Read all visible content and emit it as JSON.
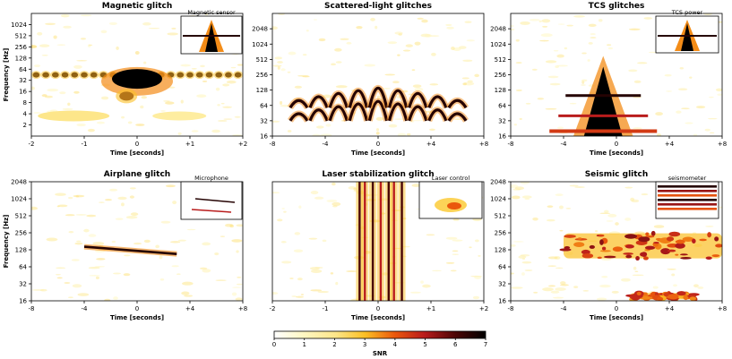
{
  "chart_data": [
    {
      "type": "heatmap",
      "title": "Magnetic glitch",
      "xlabel": "Time [seconds]",
      "ylabel": "Frequency [Hz]",
      "xlim": [
        -2,
        2
      ],
      "xticks": [
        "-2",
        "-1",
        "0",
        "+1",
        "+2"
      ],
      "ylim": [
        1,
        2048
      ],
      "yticks": [
        "2",
        "4",
        "8",
        "16",
        "32",
        "64",
        "128",
        "256",
        "512",
        "1024"
      ],
      "inset_label": "Magnetic sensor",
      "features": [
        {
          "kind": "comb",
          "freq": 45,
          "t_start": -2,
          "t_end": 2,
          "count": 22,
          "snr": 6.5
        },
        {
          "kind": "burst",
          "t": 0,
          "f_low": 8,
          "f_high": 60,
          "snr": 7
        },
        {
          "kind": "blob",
          "t": -1.2,
          "f": 3.5,
          "snr": 2
        }
      ]
    },
    {
      "type": "heatmap",
      "title": "Scattered-light glitches",
      "xlabel": "Time [seconds]",
      "ylabel": "",
      "xlim": [
        -8,
        8
      ],
      "xticks": [
        "-8",
        "-4",
        "0",
        "+4",
        "+8"
      ],
      "ylim": [
        16,
        4096
      ],
      "yticks": [
        "16",
        "32",
        "64",
        "128",
        "256",
        "512",
        "1024",
        "2048"
      ],
      "inset_label": "",
      "features": [
        {
          "kind": "arches",
          "centers": [
            -6,
            -4.5,
            -3,
            -1.5,
            0,
            1.5,
            3,
            4.5,
            6
          ],
          "f_base": 32,
          "peak": 140,
          "harmonics": 2,
          "snr": 6.5
        }
      ]
    },
    {
      "type": "heatmap",
      "title": "TCS glitches",
      "xlabel": "Time [seconds]",
      "ylabel": "",
      "xlim": [
        -8,
        8
      ],
      "xticks": [
        "-8",
        "-4",
        "0",
        "+4",
        "+8"
      ],
      "ylim": [
        16,
        4096
      ],
      "yticks": [
        "16",
        "32",
        "64",
        "128",
        "256",
        "512",
        "1024",
        "2048"
      ],
      "inset_label": "TCS power",
      "features": [
        {
          "kind": "tree",
          "t": -1,
          "f_top": 600,
          "f_bottom": 16,
          "snr": 7
        }
      ]
    },
    {
      "type": "heatmap",
      "title": "Airplane glitch",
      "xlabel": "Time [seconds]",
      "ylabel": "Frequency [Hz]",
      "xlim": [
        -8,
        8
      ],
      "xticks": [
        "-8",
        "-4",
        "0",
        "+4",
        "+8"
      ],
      "ylim": [
        16,
        2048
      ],
      "yticks": [
        "16",
        "32",
        "64",
        "128",
        "256",
        "512",
        "1024",
        "2048"
      ],
      "inset_label": "Microphone",
      "features": [
        {
          "kind": "chirp",
          "t_start": -4,
          "t_end": 3,
          "f_start": 145,
          "f_end": 108,
          "snr": 6.5
        }
      ]
    },
    {
      "type": "heatmap",
      "title": "Laser stabilization glitch",
      "xlabel": "Time [seconds]",
      "ylabel": "",
      "xlim": [
        -2,
        2
      ],
      "xticks": [
        "-2",
        "-1",
        "0",
        "+1",
        "+2"
      ],
      "ylim": [
        16,
        2048
      ],
      "yticks": [],
      "inset_label": "Laser control",
      "features": [
        {
          "kind": "stripes",
          "times": [
            -0.35,
            -0.25,
            -0.1,
            0.05,
            0.2,
            0.3,
            0.45
          ],
          "snr": 6
        }
      ]
    },
    {
      "type": "heatmap",
      "title": "Seismic glitch",
      "xlabel": "Time [seconds]",
      "ylabel": "",
      "xlim": [
        -8,
        8
      ],
      "xticks": [
        "-8",
        "-4",
        "0",
        "+4",
        "+8"
      ],
      "ylim": [
        16,
        2048
      ],
      "yticks": [
        "16",
        "32",
        "64",
        "128",
        "256",
        "512",
        "1024",
        "2048"
      ],
      "inset_label": "seismometer",
      "features": [
        {
          "kind": "band",
          "t_start": -4,
          "t_end": 8,
          "f_low": 90,
          "f_high": 250,
          "snr": 5.5
        },
        {
          "kind": "band",
          "t_start": 1,
          "t_end": 6,
          "f_low": 17,
          "f_high": 22,
          "snr": 5
        }
      ]
    }
  ],
  "colorbar": {
    "label": "SNR",
    "ticks": [
      "0",
      "1",
      "2",
      "3",
      "4",
      "5",
      "6",
      "7"
    ],
    "vmin": 0,
    "vmax": 7
  }
}
